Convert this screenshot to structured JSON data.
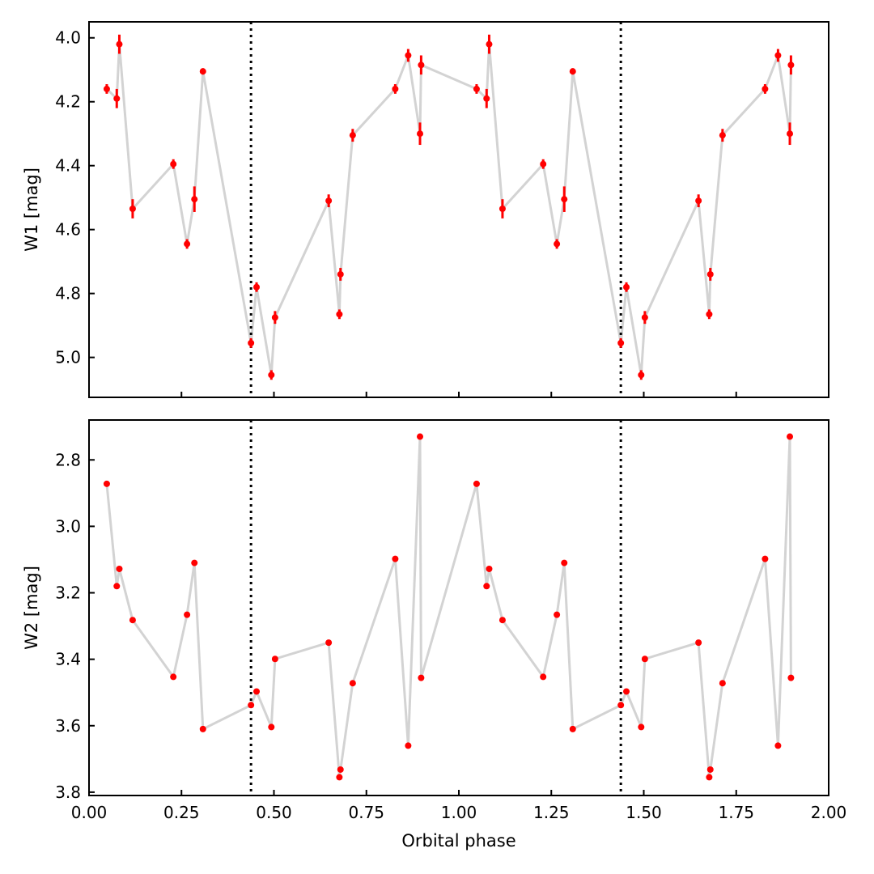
{
  "chart_data": {
    "type": "scatter",
    "xlabel": "Orbital phase",
    "xlim": [
      0.0,
      2.0
    ],
    "x_ticks": [
      "0.00",
      "0.25",
      "0.50",
      "0.75",
      "1.00",
      "1.25",
      "1.50",
      "1.75",
      "2.00"
    ],
    "eclipse_markers_x": [
      0.438,
      1.438
    ],
    "colors": {
      "points": "#ff0000",
      "line": "#d3d3d3",
      "markers": "#000000"
    },
    "panels": [
      {
        "ylabel": "W1 [mag]",
        "ylim": [
          5.125,
          3.95
        ],
        "inverted_y": true,
        "y_ticks": [
          "4.0",
          "4.2",
          "4.4",
          "4.6",
          "4.8",
          "5.0"
        ],
        "points": [
          {
            "x": 0.048,
            "y": 4.16,
            "err": 0.015
          },
          {
            "x": 0.075,
            "y": 4.19,
            "err": 0.03
          },
          {
            "x": 0.082,
            "y": 4.02,
            "err": 0.03
          },
          {
            "x": 0.118,
            "y": 4.535,
            "err": 0.03
          },
          {
            "x": 0.228,
            "y": 4.395,
            "err": 0.015
          },
          {
            "x": 0.265,
            "y": 4.645,
            "err": 0.015
          },
          {
            "x": 0.285,
            "y": 4.505,
            "err": 0.04
          },
          {
            "x": 0.308,
            "y": 4.105,
            "err": 0.01
          },
          {
            "x": 0.438,
            "y": 4.955,
            "err": 0.015
          },
          {
            "x": 0.453,
            "y": 4.78,
            "err": 0.015
          },
          {
            "x": 0.493,
            "y": 5.055,
            "err": 0.015
          },
          {
            "x": 0.503,
            "y": 4.875,
            "err": 0.02
          },
          {
            "x": 0.648,
            "y": 4.51,
            "err": 0.02
          },
          {
            "x": 0.677,
            "y": 4.865,
            "err": 0.015
          },
          {
            "x": 0.68,
            "y": 4.74,
            "err": 0.02
          },
          {
            "x": 0.713,
            "y": 4.305,
            "err": 0.02
          },
          {
            "x": 0.828,
            "y": 4.16,
            "err": 0.015
          },
          {
            "x": 0.863,
            "y": 4.055,
            "err": 0.02
          },
          {
            "x": 0.895,
            "y": 4.3,
            "err": 0.035
          },
          {
            "x": 0.898,
            "y": 4.085,
            "err": 0.03
          },
          {
            "x": 1.048,
            "y": 4.16,
            "err": 0.015
          },
          {
            "x": 1.075,
            "y": 4.19,
            "err": 0.03
          },
          {
            "x": 1.082,
            "y": 4.02,
            "err": 0.03
          },
          {
            "x": 1.118,
            "y": 4.535,
            "err": 0.03
          },
          {
            "x": 1.228,
            "y": 4.395,
            "err": 0.015
          },
          {
            "x": 1.265,
            "y": 4.645,
            "err": 0.015
          },
          {
            "x": 1.285,
            "y": 4.505,
            "err": 0.04
          },
          {
            "x": 1.308,
            "y": 4.105,
            "err": 0.01
          },
          {
            "x": 1.438,
            "y": 4.955,
            "err": 0.015
          },
          {
            "x": 1.453,
            "y": 4.78,
            "err": 0.015
          },
          {
            "x": 1.493,
            "y": 5.055,
            "err": 0.015
          },
          {
            "x": 1.503,
            "y": 4.875,
            "err": 0.02
          },
          {
            "x": 1.648,
            "y": 4.51,
            "err": 0.02
          },
          {
            "x": 1.677,
            "y": 4.865,
            "err": 0.015
          },
          {
            "x": 1.68,
            "y": 4.74,
            "err": 0.02
          },
          {
            "x": 1.713,
            "y": 4.305,
            "err": 0.02
          },
          {
            "x": 1.828,
            "y": 4.16,
            "err": 0.015
          },
          {
            "x": 1.863,
            "y": 4.055,
            "err": 0.02
          },
          {
            "x": 1.895,
            "y": 4.3,
            "err": 0.035
          },
          {
            "x": 1.898,
            "y": 4.085,
            "err": 0.03
          }
        ]
      },
      {
        "ylabel": "W2 [mag]",
        "ylim": [
          3.81,
          2.68
        ],
        "inverted_y": true,
        "y_ticks": [
          "2.8",
          "3.0",
          "3.2",
          "3.4",
          "3.6",
          "3.8"
        ],
        "points": [
          {
            "x": 0.048,
            "y": 2.872
          },
          {
            "x": 0.075,
            "y": 3.18
          },
          {
            "x": 0.082,
            "y": 3.128
          },
          {
            "x": 0.118,
            "y": 3.282
          },
          {
            "x": 0.228,
            "y": 3.453
          },
          {
            "x": 0.265,
            "y": 3.266
          },
          {
            "x": 0.285,
            "y": 3.11
          },
          {
            "x": 0.308,
            "y": 3.61
          },
          {
            "x": 0.438,
            "y": 3.538
          },
          {
            "x": 0.453,
            "y": 3.497
          },
          {
            "x": 0.493,
            "y": 3.604
          },
          {
            "x": 0.503,
            "y": 3.399
          },
          {
            "x": 0.648,
            "y": 3.35
          },
          {
            "x": 0.677,
            "y": 3.755
          },
          {
            "x": 0.68,
            "y": 3.732
          },
          {
            "x": 0.713,
            "y": 3.472
          },
          {
            "x": 0.828,
            "y": 3.098
          },
          {
            "x": 0.863,
            "y": 3.66
          },
          {
            "x": 0.895,
            "y": 2.73
          },
          {
            "x": 0.898,
            "y": 3.456
          },
          {
            "x": 1.048,
            "y": 2.872
          },
          {
            "x": 1.075,
            "y": 3.18
          },
          {
            "x": 1.082,
            "y": 3.128
          },
          {
            "x": 1.118,
            "y": 3.282
          },
          {
            "x": 1.228,
            "y": 3.453
          },
          {
            "x": 1.265,
            "y": 3.266
          },
          {
            "x": 1.285,
            "y": 3.11
          },
          {
            "x": 1.308,
            "y": 3.61
          },
          {
            "x": 1.438,
            "y": 3.538
          },
          {
            "x": 1.453,
            "y": 3.497
          },
          {
            "x": 1.493,
            "y": 3.604
          },
          {
            "x": 1.503,
            "y": 3.399
          },
          {
            "x": 1.648,
            "y": 3.35
          },
          {
            "x": 1.677,
            "y": 3.755
          },
          {
            "x": 1.68,
            "y": 3.732
          },
          {
            "x": 1.713,
            "y": 3.472
          },
          {
            "x": 1.828,
            "y": 3.098
          },
          {
            "x": 1.863,
            "y": 3.66
          },
          {
            "x": 1.895,
            "y": 2.73
          },
          {
            "x": 1.898,
            "y": 3.456
          }
        ]
      }
    ]
  }
}
